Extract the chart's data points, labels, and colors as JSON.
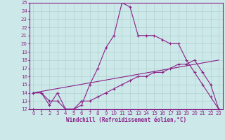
{
  "xlabel": "Windchill (Refroidissement éolien,°C)",
  "bg_color": "#cce8e8",
  "line_color": "#882288",
  "grid_color": "#aacccc",
  "xlim": [
    -0.5,
    23.5
  ],
  "ylim": [
    12,
    25
  ],
  "xticks": [
    0,
    1,
    2,
    3,
    4,
    5,
    6,
    7,
    8,
    9,
    10,
    11,
    12,
    13,
    14,
    15,
    16,
    17,
    18,
    19,
    20,
    21,
    22,
    23
  ],
  "yticks": [
    12,
    13,
    14,
    15,
    16,
    17,
    18,
    19,
    20,
    21,
    22,
    23,
    24,
    25
  ],
  "line1_x": [
    0,
    1,
    2,
    3,
    4,
    5,
    6,
    7,
    8,
    9,
    10,
    11,
    12,
    13,
    14,
    15,
    16,
    17,
    18,
    19,
    20,
    21,
    22,
    23
  ],
  "line1_y": [
    14,
    14,
    12.5,
    14,
    12,
    12,
    12.5,
    15,
    17,
    19.5,
    21,
    25,
    24.5,
    21,
    21,
    21,
    20.5,
    20,
    20,
    18,
    16.5,
    15,
    13.5,
    12
  ],
  "line2_x": [
    0,
    1,
    2,
    3,
    4,
    5,
    6,
    7,
    8,
    9,
    10,
    11,
    12,
    13,
    14,
    15,
    16,
    17,
    18,
    19,
    20,
    21,
    22,
    23
  ],
  "line2_y": [
    14,
    14,
    13,
    13,
    12,
    12,
    13,
    13,
    13.5,
    14,
    14.5,
    15,
    15.5,
    16,
    16,
    16.5,
    16.5,
    17,
    17.5,
    17.5,
    18,
    16.5,
    15,
    12
  ],
  "line3_x": [
    0,
    23
  ],
  "line3_y": [
    14,
    18
  ],
  "line4_x": [
    0,
    23
  ],
  "line4_y": [
    12,
    12
  ],
  "tick_fontsize": 5.0,
  "xlabel_fontsize": 5.5,
  "linewidth": 0.8,
  "markersize": 3.0
}
